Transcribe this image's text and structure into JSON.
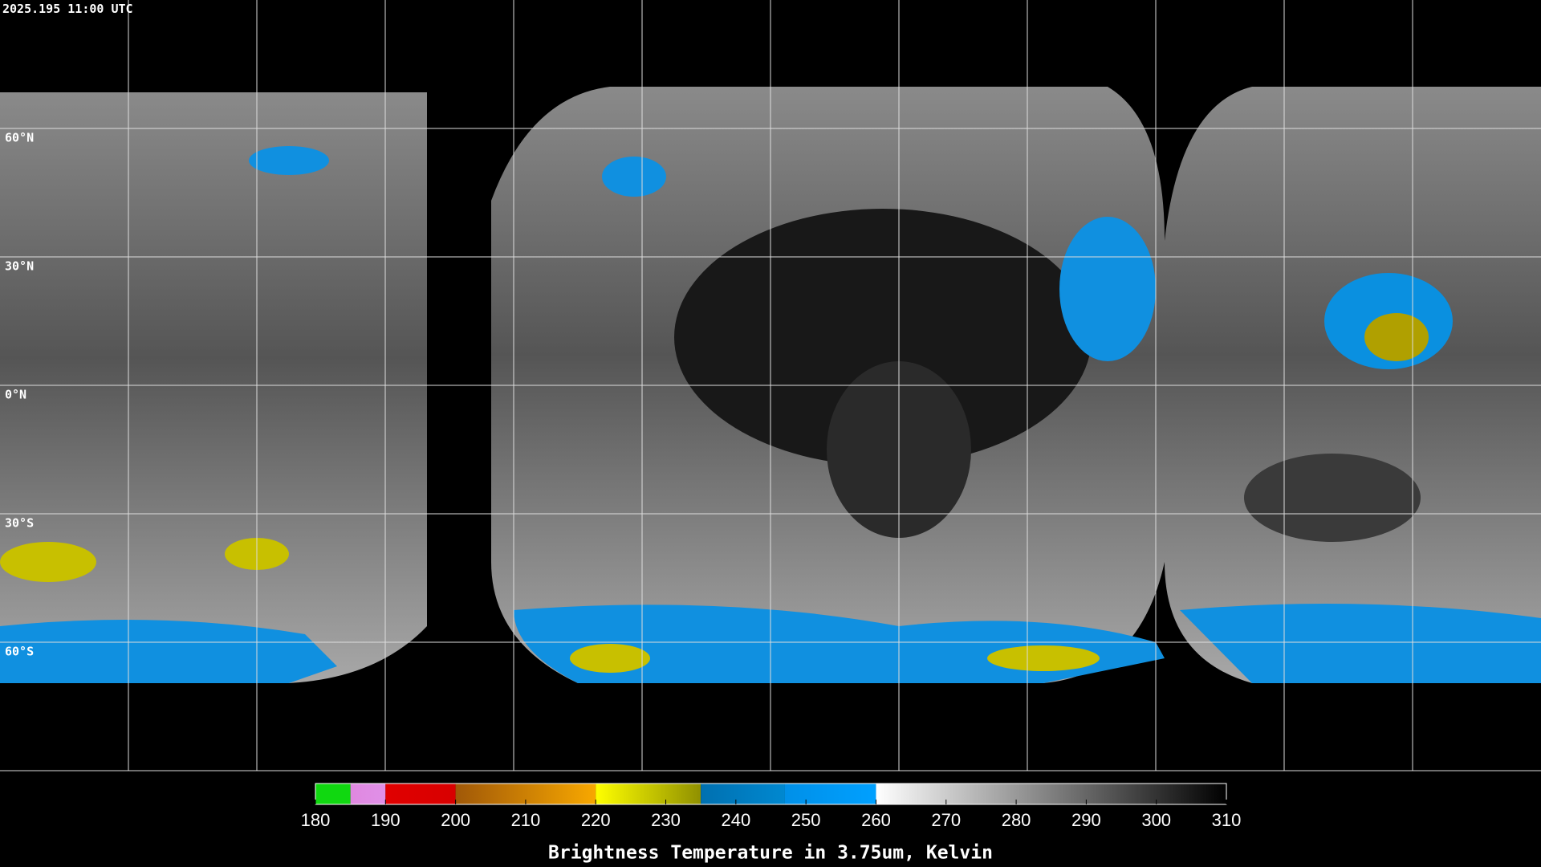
{
  "header": {
    "timestamp": "2025.195 11:00 UTC"
  },
  "map": {
    "lat_labels": [
      "60°N",
      "30°N",
      "0°N",
      "30°S",
      "60°S"
    ]
  },
  "colorbar": {
    "title": "Brightness Temperature in 3.75um, Kelvin",
    "range": [
      180,
      310
    ],
    "ticks": [
      180,
      190,
      200,
      210,
      220,
      230,
      240,
      250,
      260,
      270,
      280,
      290,
      300,
      310
    ],
    "segments": [
      {
        "from": 180,
        "to": 185,
        "colors": [
          "#10d810",
          "#10d810"
        ]
      },
      {
        "from": 185,
        "to": 190,
        "colors": [
          "#e088e0",
          "#e090e8"
        ]
      },
      {
        "from": 190,
        "to": 200,
        "colors": [
          "#e00000",
          "#d80000"
        ]
      },
      {
        "from": 200,
        "to": 220,
        "colors": [
          "#a05808",
          "#f8a800"
        ]
      },
      {
        "from": 220,
        "to": 235,
        "colors": [
          "#ffff00",
          "#909000"
        ]
      },
      {
        "from": 235,
        "to": 247,
        "colors": [
          "#0070b0",
          "#0088d0"
        ]
      },
      {
        "from": 247,
        "to": 260,
        "colors": [
          "#0090e8",
          "#00a0ff"
        ]
      },
      {
        "from": 260,
        "to": 310,
        "colors": [
          "#ffffff",
          "#000000"
        ]
      }
    ]
  }
}
